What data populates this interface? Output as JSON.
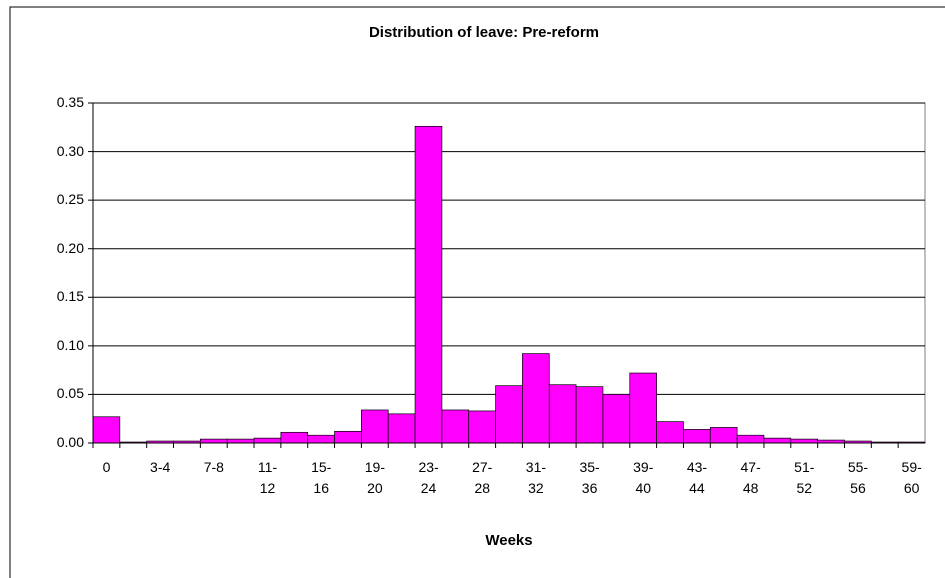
{
  "chart_data": {
    "type": "bar",
    "title": "Distribution of leave: Pre-reform",
    "x_label": "Weeks",
    "categories": [
      "0",
      null,
      "3-4",
      null,
      "7-8",
      null,
      "11-12",
      null,
      "15-16",
      null,
      "19-20",
      null,
      "23-24",
      null,
      "27-28",
      null,
      "31-32",
      null,
      "35-36",
      null,
      "39-40",
      null,
      "43-44",
      null,
      "47-48",
      null,
      "51-52",
      null,
      "55-56",
      null,
      "59-60"
    ],
    "values": [
      0.027,
      0.001,
      0.002,
      0.002,
      0.004,
      0.004,
      0.005,
      0.011,
      0.008,
      0.012,
      0.034,
      0.03,
      0.326,
      0.034,
      0.033,
      0.059,
      0.092,
      0.06,
      0.058,
      0.05,
      0.072,
      0.022,
      0.014,
      0.016,
      0.008,
      0.005,
      0.004,
      0.003,
      0.002,
      0.001,
      0.001
    ],
    "color": "#ff00ff",
    "ylim": [
      0,
      0.35
    ],
    "yticks": [
      {
        "value": 0,
        "label": "0.00"
      },
      0.05,
      {
        "value": 0.1,
        "label": "0.10"
      },
      0.15,
      {
        "value": 0.2,
        "label": "0.20"
      },
      0.25,
      {
        "value": 0.3,
        "label": "0.30"
      },
      0.35
    ],
    "grid": true
  }
}
